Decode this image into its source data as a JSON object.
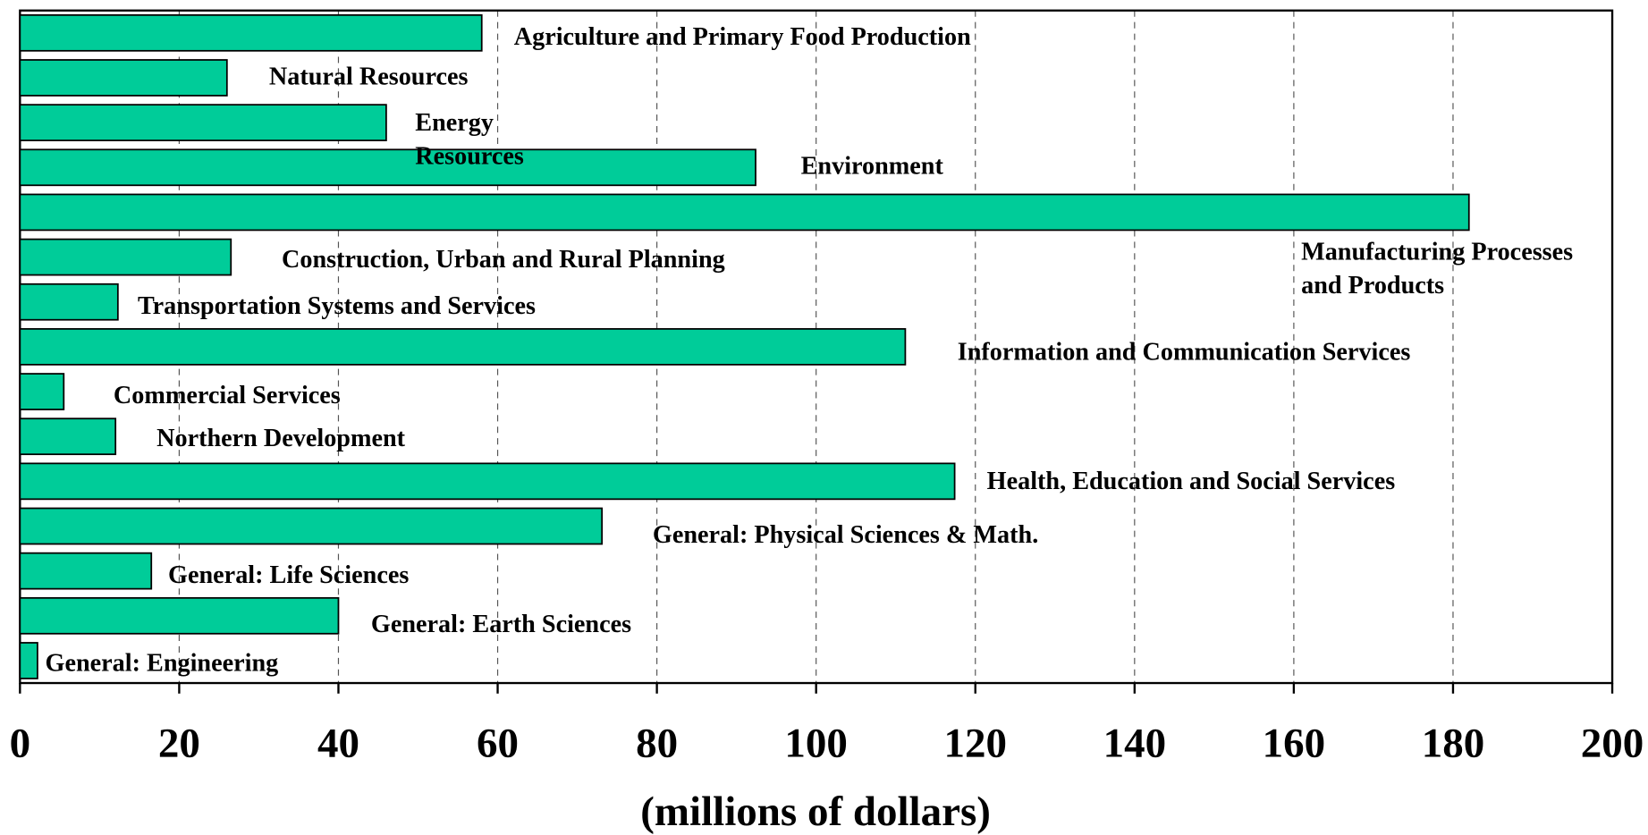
{
  "chart_data": {
    "type": "bar",
    "orientation": "horizontal",
    "x_label": "(millions of dollars)",
    "categories": [
      "Agriculture and Primary Food Production",
      "Natural Resources",
      "Energy\nResources",
      "Environment",
      "Manufacturing Processes\nand Products",
      "Construction, Urban and Rural Planning",
      "Transportation Systems and Services",
      "Information and Communication Services",
      "Commercial Services",
      "Northern Development",
      "Health, Education and Social Services",
      "General: Physical Sciences & Math.",
      "General: Life  Sciences",
      "General: Earth  Sciences",
      "General: Engineering"
    ],
    "values": [
      58,
      26,
      46,
      92.4,
      182,
      26.5,
      12.3,
      111.2,
      5.5,
      12,
      117.4,
      73.1,
      16.5,
      40,
      2.2
    ],
    "color": "#00cc99",
    "xlim": [
      0,
      200
    ],
    "xticks": [
      0,
      20,
      40,
      60,
      80,
      100,
      120,
      140,
      160,
      180,
      200
    ],
    "grid": true
  }
}
